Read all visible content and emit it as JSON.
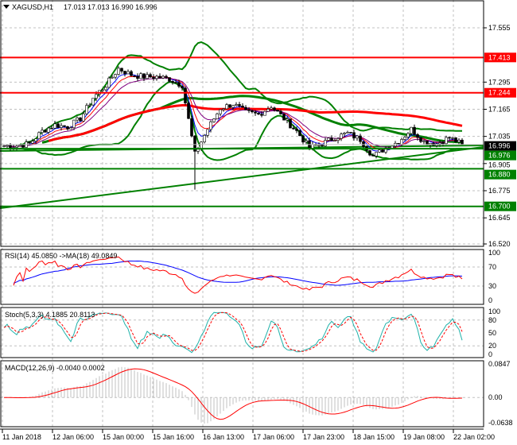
{
  "header": {
    "symbol": "XAGUSD,H1",
    "ohlc": "17.013 17.013 16.990 16.996"
  },
  "chart_data": [
    {
      "type": "candlestick",
      "title": "XAGUSD,H1",
      "price_axis": {
        "ticks": [
          "17.555",
          "17.295",
          "17.165",
          "17.035",
          "16.905",
          "16.775",
          "16.645",
          "16.520"
        ],
        "range": [
          16.52,
          17.61
        ]
      },
      "time_axis": [
        "11 Jan 2018",
        "12 Jan 06:00",
        "15 Jan 00:00",
        "15 Jan 16:00",
        "16 Jan 13:00",
        "17 Jan 06:00",
        "17 Jan 23:00",
        "18 Jan 15:00",
        "19 Jan 08:00",
        "22 Jan 02:00"
      ],
      "close_path": [
        16.99,
        16.99,
        17.0,
        17.06,
        17.09,
        17.08,
        17.12,
        17.22,
        17.28,
        17.36,
        17.33,
        17.32,
        17.32,
        17.31,
        17.28,
        16.95,
        17.07,
        17.17,
        17.19,
        17.15,
        17.14,
        17.18,
        17.12,
        17.06,
        16.98,
        17.0,
        17.03,
        17.05,
        17.02,
        16.94,
        16.98,
        17.01,
        17.07,
        17.01,
        17.0,
        17.03,
        16.996
      ],
      "current_price": "16.996",
      "levels": [
        {
          "value": "17.413",
          "color": "#ff0000"
        },
        {
          "value": "17.244",
          "color": "#ff0000"
        },
        {
          "value": "16.976",
          "color": "#008000"
        },
        {
          "value": "16.880",
          "color": "#008000"
        },
        {
          "value": "16.700",
          "color": "#008000"
        }
      ],
      "grid": true
    },
    {
      "type": "line",
      "title": "RSI(14) 45.0850  ->MA(18) 49.0849",
      "ticks": [
        "100",
        "70",
        "30",
        "0"
      ],
      "range": [
        0,
        100
      ],
      "levels": [
        30,
        70
      ],
      "series_colors": [
        "#ff0000",
        "#0000ff"
      ]
    },
    {
      "type": "line",
      "title": "Stoch(5,3,3) 4.1885 20.8113",
      "ticks": [
        "100",
        "80",
        "50",
        "20",
        "0"
      ],
      "range": [
        0,
        100
      ],
      "series_colors": [
        "#20b2aa",
        "#ff0000"
      ]
    },
    {
      "type": "bar+line",
      "title": "MACD(12,26,9) -0.0040 0.0002",
      "ticks": [
        "0.0847",
        "0.00",
        "-0.0638"
      ],
      "range": [
        -0.0638,
        0.0847
      ],
      "series_colors": [
        "#c0c0c0",
        "#ff0000"
      ]
    }
  ]
}
